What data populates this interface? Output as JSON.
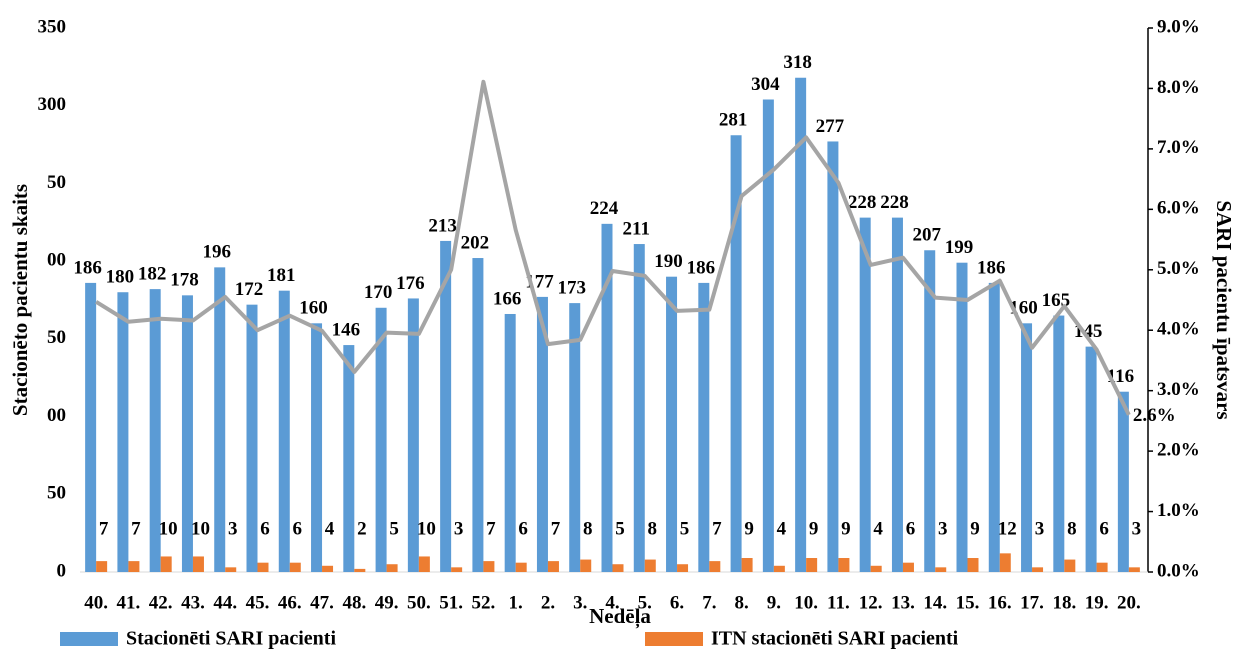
{
  "chart_data": {
    "type": "bar",
    "y_label": "Stacionēto pacientu skaits",
    "y2_label": "SARI pacientu īpatsvars",
    "x_label": "Nedēļa",
    "categories": [
      "40.",
      "41.",
      "42.",
      "43.",
      "44.",
      "45.",
      "46.",
      "47.",
      "48.",
      "49.",
      "50.",
      "51.",
      "52.",
      "1.",
      "2.",
      "3.",
      "4.",
      "5.",
      "6.",
      "7.",
      "8.",
      "9.",
      "10.",
      "11.",
      "12.",
      "13.",
      "14.",
      "15.",
      "16.",
      "17.",
      "18.",
      "19.",
      "20."
    ],
    "series": [
      {
        "name": "Stacionēti SARI pacienti",
        "color": "#5b9bd5",
        "type": "bar",
        "values": [
          186,
          180,
          182,
          178,
          196,
          172,
          181,
          160,
          146,
          170,
          176,
          213,
          202,
          166,
          177,
          173,
          224,
          211,
          190,
          186,
          281,
          304,
          318,
          277,
          228,
          228,
          207,
          199,
          186,
          160,
          165,
          145,
          116
        ]
      },
      {
        "name": "ITN stacionēti SARI pacienti",
        "color": "#ed7d31",
        "type": "bar",
        "values": [
          7,
          7,
          10,
          10,
          3,
          6,
          6,
          4,
          2,
          5,
          10,
          3,
          7,
          6,
          7,
          8,
          5,
          8,
          5,
          7,
          9,
          4,
          9,
          9,
          4,
          6,
          3,
          9,
          12,
          3,
          8,
          6,
          3
        ]
      },
      {
        "color": "#a5a5a5",
        "type": "line",
        "axis": "y2",
        "values": [
          4.47,
          4.14,
          4.19,
          4.16,
          4.55,
          4.0,
          4.24,
          3.99,
          3.31,
          3.96,
          3.94,
          5.0,
          8.11,
          5.66,
          3.77,
          3.84,
          4.98,
          4.9,
          4.32,
          4.34,
          6.22,
          6.66,
          7.19,
          6.44,
          5.08,
          5.2,
          4.54,
          4.5,
          4.82,
          3.71,
          4.4,
          3.68,
          2.6
        ],
        "value_labels": [
          null,
          null,
          null,
          null,
          null,
          null,
          null,
          null,
          null,
          null,
          null,
          null,
          null,
          null,
          null,
          null,
          null,
          null,
          null,
          null,
          null,
          null,
          null,
          null,
          null,
          null,
          null,
          null,
          null,
          null,
          null,
          null,
          "2.6%"
        ]
      }
    ],
    "ylim": [
      0,
      350
    ],
    "yticks": [
      0,
      50,
      {
        "value": 100,
        "label": "00"
      },
      {
        "value": 150,
        "label": "50"
      },
      {
        "value": 200,
        "label": "00"
      },
      {
        "value": 250,
        "label": "50"
      },
      300,
      350
    ],
    "y2lim": [
      0,
      9
    ],
    "y2ticks": [
      {
        "value": 0,
        "label": "0.0%"
      },
      {
        "value": 1,
        "label": "1.0%"
      },
      {
        "value": 2,
        "label": "2.0%"
      },
      {
        "value": 3,
        "label": "3.0%"
      },
      {
        "value": 4,
        "label": "4.0%"
      },
      {
        "value": 5,
        "label": "5.0%"
      },
      {
        "value": 6,
        "label": "6.0%"
      },
      {
        "value": 7,
        "label": "7.0%"
      },
      {
        "value": 8,
        "label": "8.0%"
      },
      {
        "value": 9,
        "label": "9.0%"
      }
    ],
    "grid": false
  }
}
